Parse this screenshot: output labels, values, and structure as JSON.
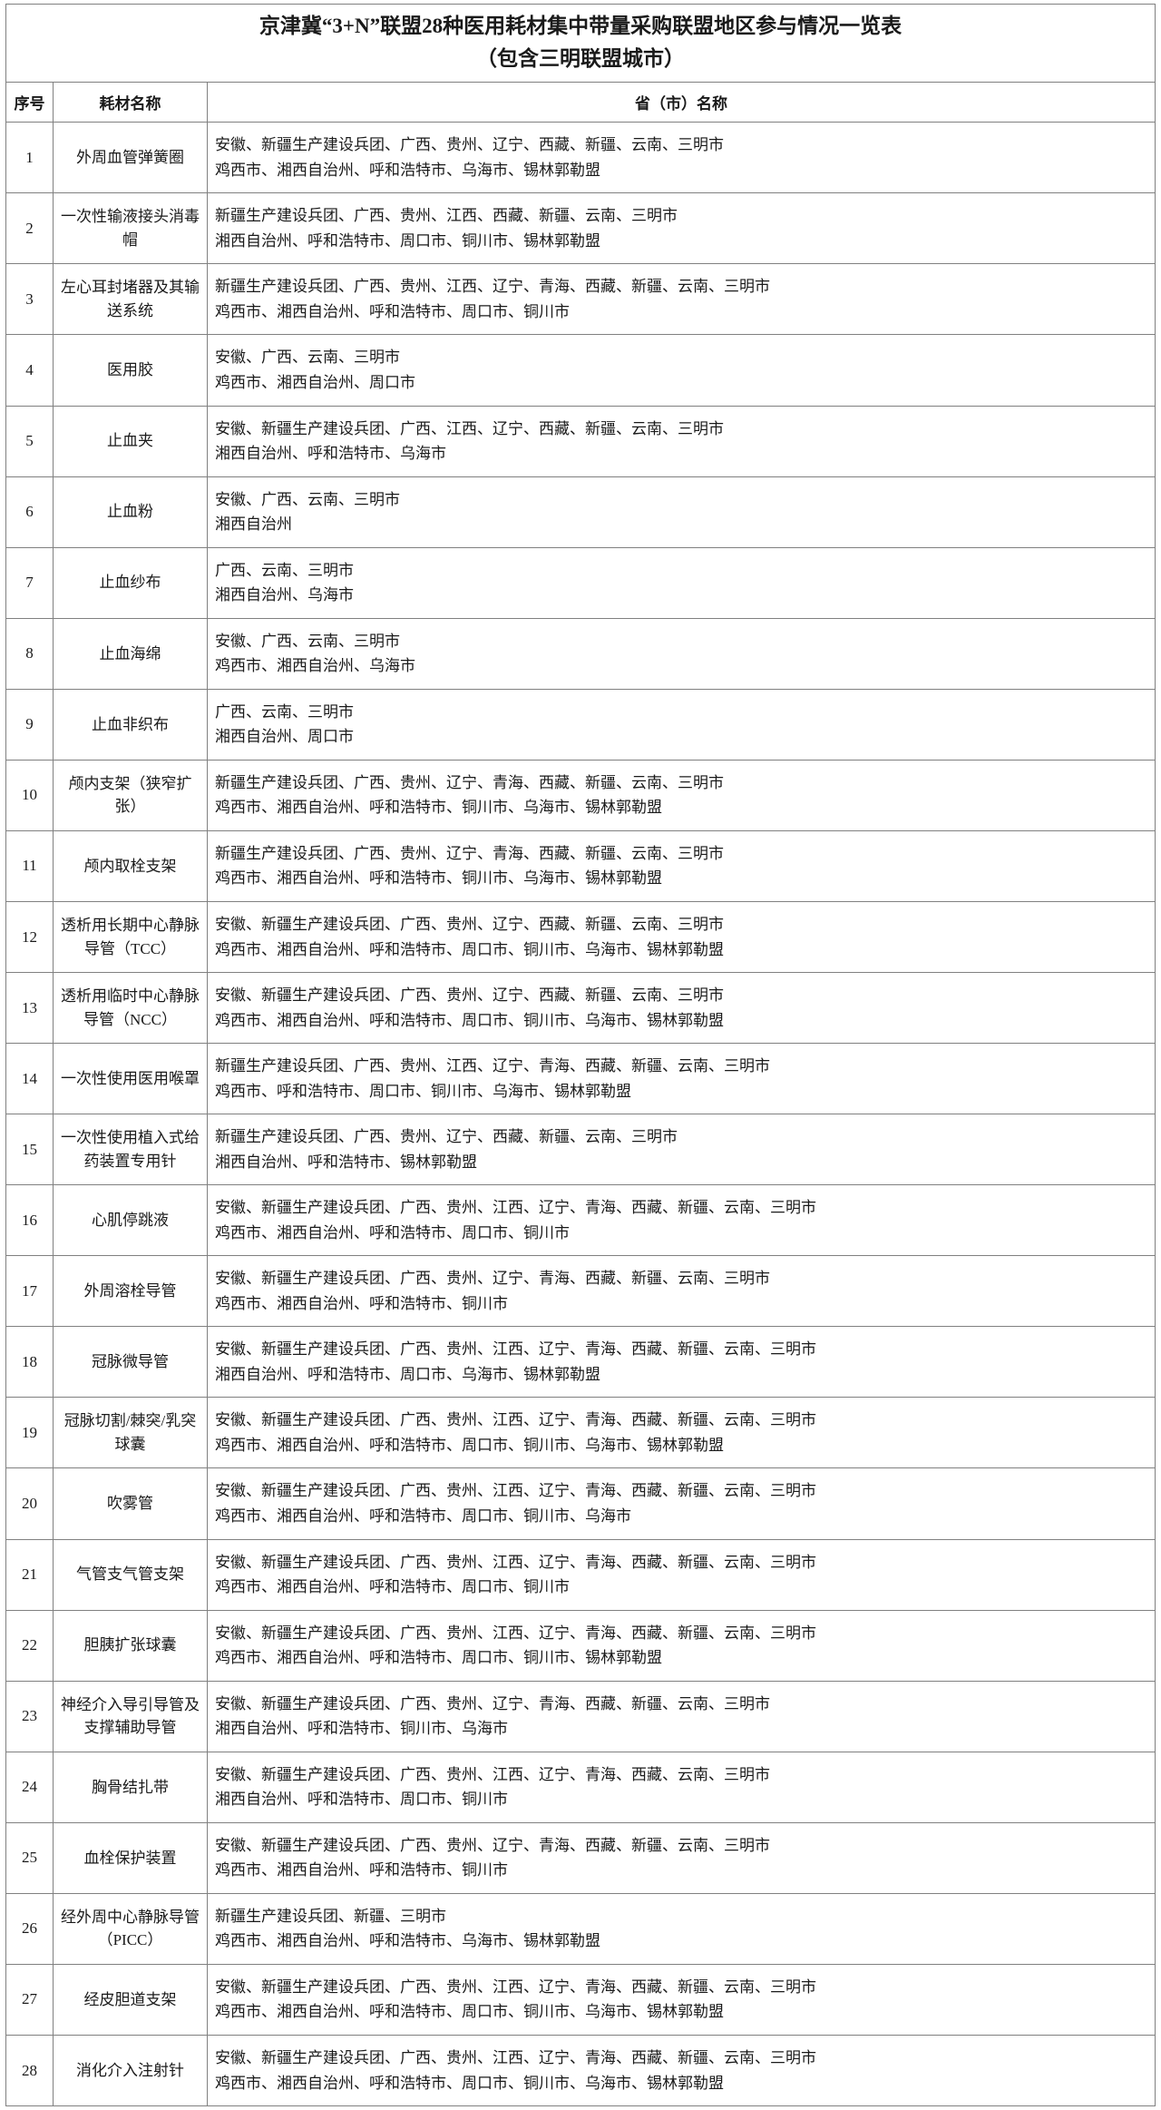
{
  "title": {
    "line1": "京津冀“3+N”联盟28种医用耗材集中带量采购联盟地区参与情况一览表",
    "line2": "（包含三明联盟城市）"
  },
  "table": {
    "headers": {
      "no": "序号",
      "name": "耗材名称",
      "region": "省（市）名称"
    },
    "rows": [
      {
        "no": "1",
        "name": "外周血管弹簧圈",
        "provinces": "安徽、新疆生产建设兵团、广西、贵州、辽宁、西藏、新疆、云南、三明市",
        "cities": "鸡西市、湘西自治州、呼和浩特市、乌海市、锡林郭勒盟"
      },
      {
        "no": "2",
        "name": "一次性输液接头消毒帽",
        "provinces": "新疆生产建设兵团、广西、贵州、江西、西藏、新疆、云南、三明市",
        "cities": "湘西自治州、呼和浩特市、周口市、铜川市、锡林郭勒盟"
      },
      {
        "no": "3",
        "name": "左心耳封堵器及其输送系统",
        "provinces": "新疆生产建设兵团、广西、贵州、江西、辽宁、青海、西藏、新疆、云南、三明市",
        "cities": "鸡西市、湘西自治州、呼和浩特市、周口市、铜川市"
      },
      {
        "no": "4",
        "name": "医用胶",
        "provinces": "安徽、广西、云南、三明市",
        "cities": "鸡西市、湘西自治州、周口市"
      },
      {
        "no": "5",
        "name": "止血夹",
        "provinces": "安徽、新疆生产建设兵团、广西、江西、辽宁、西藏、新疆、云南、三明市",
        "cities": "湘西自治州、呼和浩特市、乌海市"
      },
      {
        "no": "6",
        "name": "止血粉",
        "provinces": "安徽、广西、云南、三明市",
        "cities": "湘西自治州"
      },
      {
        "no": "7",
        "name": "止血纱布",
        "provinces": "广西、云南、三明市",
        "cities": "湘西自治州、乌海市"
      },
      {
        "no": "8",
        "name": "止血海绵",
        "provinces": "安徽、广西、云南、三明市",
        "cities": "鸡西市、湘西自治州、乌海市"
      },
      {
        "no": "9",
        "name": "止血非织布",
        "provinces": "广西、云南、三明市",
        "cities": "湘西自治州、周口市"
      },
      {
        "no": "10",
        "name": "颅内支架（狭窄扩张）",
        "provinces": "新疆生产建设兵团、广西、贵州、辽宁、青海、西藏、新疆、云南、三明市",
        "cities": "鸡西市、湘西自治州、呼和浩特市、铜川市、乌海市、锡林郭勒盟"
      },
      {
        "no": "11",
        "name": "颅内取栓支架",
        "provinces": "新疆生产建设兵团、广西、贵州、辽宁、青海、西藏、新疆、云南、三明市",
        "cities": "鸡西市、湘西自治州、呼和浩特市、铜川市、乌海市、锡林郭勒盟"
      },
      {
        "no": "12",
        "name": "透析用长期中心静脉导管（TCC）",
        "provinces": "安徽、新疆生产建设兵团、广西、贵州、辽宁、西藏、新疆、云南、三明市",
        "cities": "鸡西市、湘西自治州、呼和浩特市、周口市、铜川市、乌海市、锡林郭勒盟"
      },
      {
        "no": "13",
        "name": "透析用临时中心静脉导管（NCC）",
        "provinces": "安徽、新疆生产建设兵团、广西、贵州、辽宁、西藏、新疆、云南、三明市",
        "cities": "鸡西市、湘西自治州、呼和浩特市、周口市、铜川市、乌海市、锡林郭勒盟"
      },
      {
        "no": "14",
        "name": "一次性使用医用喉罩",
        "provinces": "新疆生产建设兵团、广西、贵州、江西、辽宁、青海、西藏、新疆、云南、三明市",
        "cities": "鸡西市、呼和浩特市、周口市、铜川市、乌海市、锡林郭勒盟"
      },
      {
        "no": "15",
        "name": "一次性使用植入式给药装置专用针",
        "provinces": "新疆生产建设兵团、广西、贵州、辽宁、西藏、新疆、云南、三明市",
        "cities": "湘西自治州、呼和浩特市、锡林郭勒盟"
      },
      {
        "no": "16",
        "name": "心肌停跳液",
        "provinces": "安徽、新疆生产建设兵团、广西、贵州、江西、辽宁、青海、西藏、新疆、云南、三明市",
        "cities": "鸡西市、湘西自治州、呼和浩特市、周口市、铜川市"
      },
      {
        "no": "17",
        "name": "外周溶栓导管",
        "provinces": "安徽、新疆生产建设兵团、广西、贵州、辽宁、青海、西藏、新疆、云南、三明市",
        "cities": "鸡西市、湘西自治州、呼和浩特市、铜川市"
      },
      {
        "no": "18",
        "name": "冠脉微导管",
        "provinces": "安徽、新疆生产建设兵团、广西、贵州、江西、辽宁、青海、西藏、新疆、云南、三明市",
        "cities": "湘西自治州、呼和浩特市、周口市、乌海市、锡林郭勒盟"
      },
      {
        "no": "19",
        "name": "冠脉切割/棘突/乳突球囊",
        "provinces": "安徽、新疆生产建设兵团、广西、贵州、江西、辽宁、青海、西藏、新疆、云南、三明市",
        "cities": "鸡西市、湘西自治州、呼和浩特市、周口市、铜川市、乌海市、锡林郭勒盟"
      },
      {
        "no": "20",
        "name": "吹雾管",
        "provinces": "安徽、新疆生产建设兵团、广西、贵州、江西、辽宁、青海、西藏、新疆、云南、三明市",
        "cities": "鸡西市、湘西自治州、呼和浩特市、周口市、铜川市、乌海市"
      },
      {
        "no": "21",
        "name": "气管支气管支架",
        "provinces": "安徽、新疆生产建设兵团、广西、贵州、江西、辽宁、青海、西藏、新疆、云南、三明市",
        "cities": "鸡西市、湘西自治州、呼和浩特市、周口市、铜川市"
      },
      {
        "no": "22",
        "name": "胆胰扩张球囊",
        "provinces": "安徽、新疆生产建设兵团、广西、贵州、江西、辽宁、青海、西藏、新疆、云南、三明市",
        "cities": "鸡西市、湘西自治州、呼和浩特市、周口市、铜川市、锡林郭勒盟"
      },
      {
        "no": "23",
        "name": "神经介入导引导管及支撑辅助导管",
        "provinces": "安徽、新疆生产建设兵团、广西、贵州、辽宁、青海、西藏、新疆、云南、三明市",
        "cities": "湘西自治州、呼和浩特市、铜川市、乌海市"
      },
      {
        "no": "24",
        "name": "胸骨结扎带",
        "provinces": "安徽、新疆生产建设兵团、广西、贵州、江西、辽宁、青海、西藏、云南、三明市",
        "cities": "湘西自治州、呼和浩特市、周口市、铜川市"
      },
      {
        "no": "25",
        "name": "血栓保护装置",
        "provinces": "安徽、新疆生产建设兵团、广西、贵州、辽宁、青海、西藏、新疆、云南、三明市",
        "cities": "鸡西市、湘西自治州、呼和浩特市、铜川市"
      },
      {
        "no": "26",
        "name": "经外周中心静脉导管（PICC）",
        "provinces": "新疆生产建设兵团、新疆、三明市",
        "cities": "鸡西市、湘西自治州、呼和浩特市、乌海市、锡林郭勒盟"
      },
      {
        "no": "27",
        "name": "经皮胆道支架",
        "provinces": "安徽、新疆生产建设兵团、广西、贵州、江西、辽宁、青海、西藏、新疆、云南、三明市",
        "cities": "鸡西市、湘西自治州、呼和浩特市、周口市、铜川市、乌海市、锡林郭勒盟"
      },
      {
        "no": "28",
        "name": "消化介入注射针",
        "provinces": "安徽、新疆生产建设兵团、广西、贵州、江西、辽宁、青海、西藏、新疆、云南、三明市",
        "cities": "鸡西市、湘西自治州、呼和浩特市、周口市、铜川市、乌海市、锡林郭勒盟"
      }
    ]
  }
}
